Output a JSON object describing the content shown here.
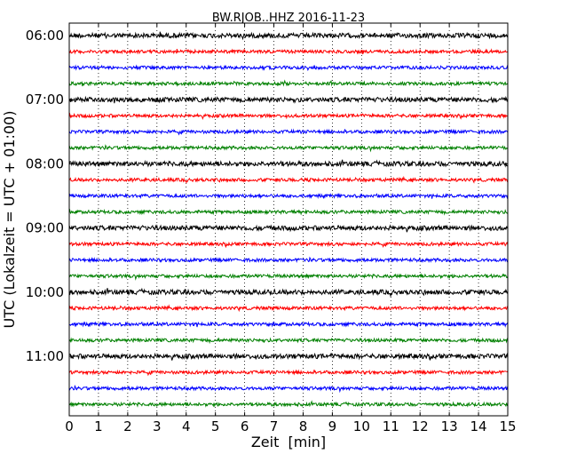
{
  "chart_data": {
    "type": "line",
    "title": "BW.RJOB..HHZ 2016-11-23",
    "xlabel": "Zeit  [min]",
    "ylabel": "UTC (Lokalzeit = UTC + 01:00)",
    "xlim": [
      0,
      15
    ],
    "x_ticks": [
      "0",
      "1",
      "2",
      "3",
      "4",
      "5",
      "6",
      "7",
      "8",
      "9",
      "10",
      "11",
      "12",
      "13",
      "14",
      "15"
    ],
    "y_ticks": [
      "06:00",
      "07:00",
      "08:00",
      "09:00",
      "10:00",
      "11:00"
    ],
    "traces_per_hour": 4,
    "trace_start_times": [
      "06:00",
      "06:15",
      "06:30",
      "06:45",
      "07:00",
      "07:15",
      "07:30",
      "07:45",
      "08:00",
      "08:15",
      "08:30",
      "08:45",
      "09:00",
      "09:15",
      "09:30",
      "09:45",
      "10:00",
      "10:15",
      "10:30",
      "10:45",
      "11:00",
      "11:15",
      "11:30",
      "11:45"
    ],
    "trace_colors": [
      "#000000",
      "#ff0000",
      "#0000ff",
      "#008000"
    ],
    "grid": "vertical dotted"
  }
}
